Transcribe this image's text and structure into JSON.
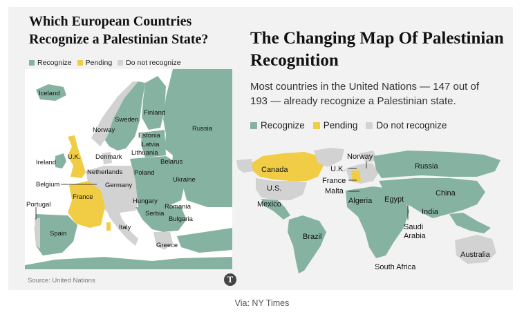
{
  "colors": {
    "recognize": "#86b3a1",
    "pending": "#f1cd45",
    "not_recognize": "#d2d2d2",
    "sea": "#ffffff",
    "panel": "#f2f2f2"
  },
  "left": {
    "title": "Which European Countries Recognize a Palestinian State?",
    "legend": {
      "recognize": "Recognize",
      "pending": "Pending",
      "not": "Do not recognize"
    },
    "source": "Source: United Nations",
    "labels": {
      "iceland": "Iceland",
      "finland": "Finland",
      "sweden": "Sweden",
      "norway": "Norway",
      "russia": "Russia",
      "estonia": "Estonia",
      "latvia": "Latvia",
      "lithuania": "Lithuania",
      "uk": "U.K.",
      "denmark": "Denmark",
      "ireland": "Ireland",
      "belarus": "Belarus",
      "netherlands": "Netherlands",
      "poland": "Poland",
      "belgium": "Belgium",
      "germany": "Germany",
      "ukraine": "Ukraine",
      "portugal": "Portugal",
      "france": "France",
      "hungary": "Hungary",
      "romania": "Romania",
      "serbia": "Serbia",
      "bulgaria": "Bulgaria",
      "spain": "Spain",
      "italy": "Italy",
      "greece": "Greece"
    }
  },
  "right": {
    "title": "The Changing Map Of Palestinian Recognition",
    "subtitle": "Most countries in the United Nations — 147 out of 193 — already recognize a Palestinian state.",
    "legend": {
      "recognize": "Recognize",
      "pending": "Pending",
      "not": "Do not recognize"
    },
    "labels": {
      "norway": "Norway",
      "canada": "Canada",
      "uk": "U.K.",
      "russia": "Russia",
      "france": "France",
      "us": "U.S.",
      "malta": "Malta",
      "china": "China",
      "algeria": "Algeria",
      "egypt": "Egypt",
      "mexico": "Mexico",
      "india": "India",
      "saudi": "Saudi Arabia",
      "brazil": "Brazil",
      "australia": "Australia",
      "south_africa": "South Africa"
    }
  },
  "via": "Via: NY Times",
  "logo": "T"
}
